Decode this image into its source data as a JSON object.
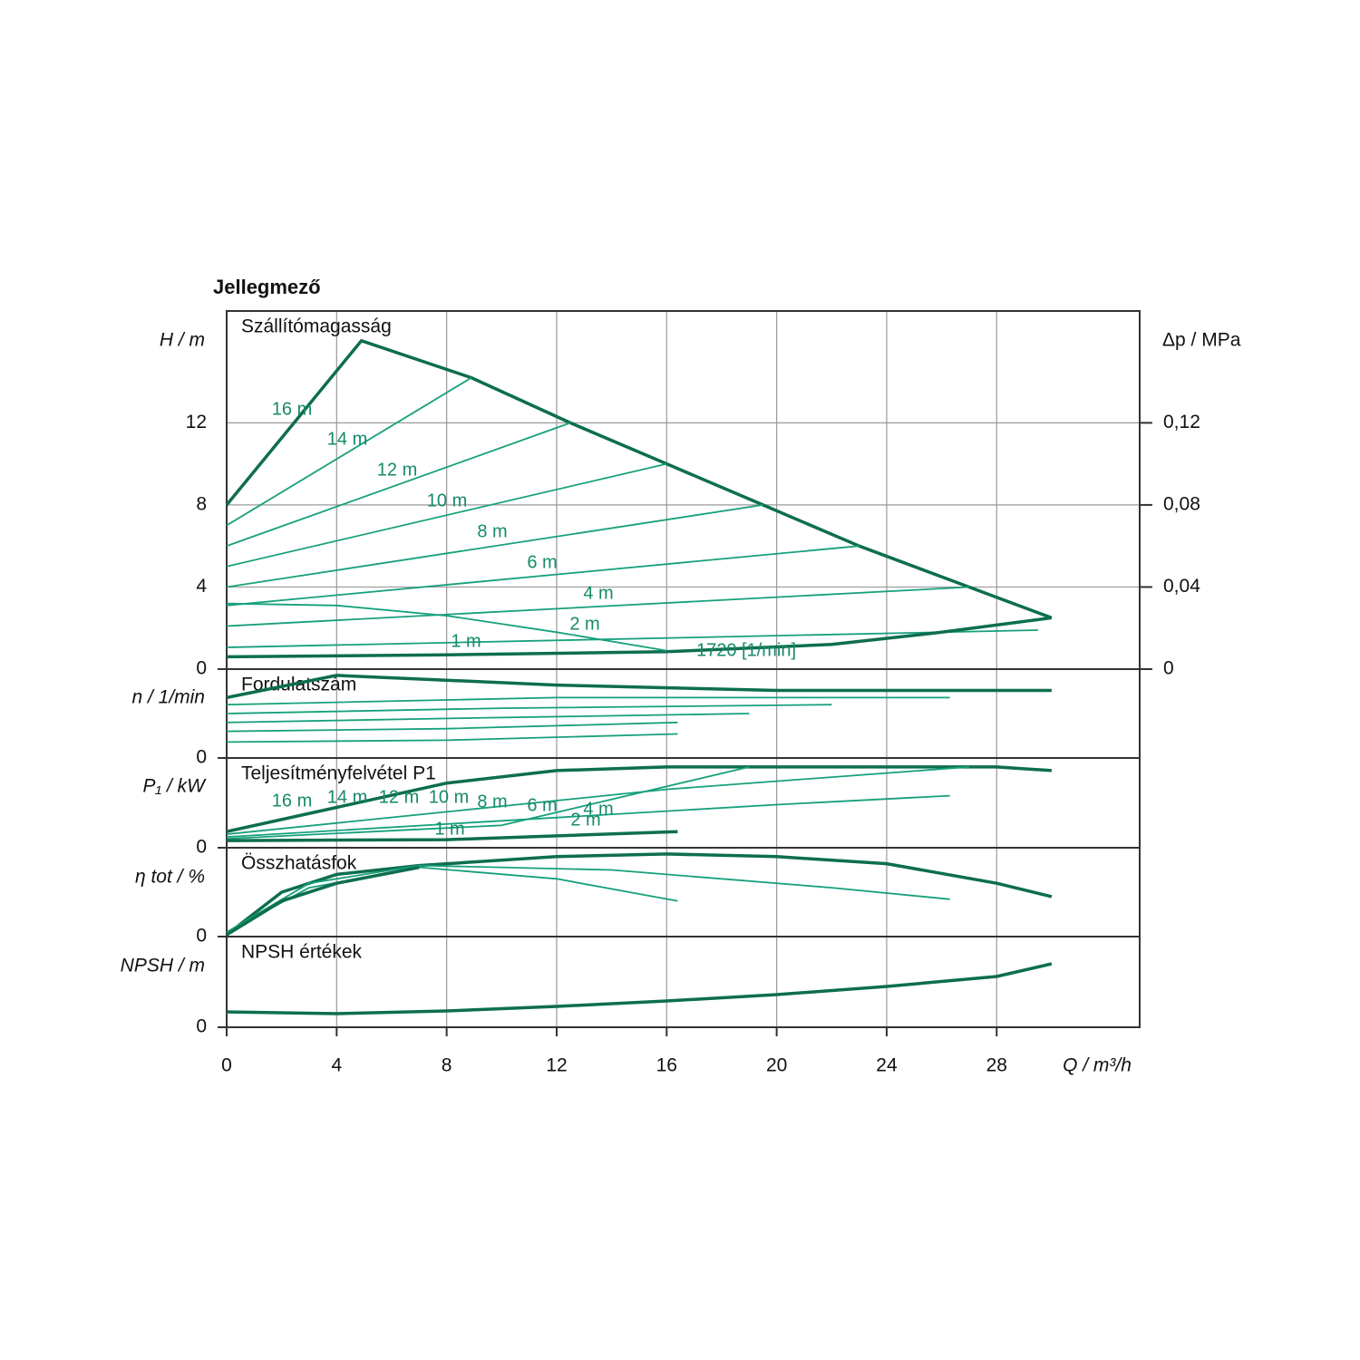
{
  "chart_data": [
    {
      "type": "line",
      "title": "Jellegmező",
      "subtitle": "Szállítómagasság",
      "y_label": "H / m",
      "y2_label": "Δp / MPa",
      "xlim": [
        0,
        33.2
      ],
      "ylim": [
        0,
        17.45
      ],
      "yticks": [
        0,
        4,
        8,
        12
      ],
      "y2lim": [
        0,
        0.1745
      ],
      "y2ticks": [
        0,
        {
          "value": 0.04,
          "label": "0,04"
        },
        {
          "value": 0.08,
          "label": "0,08"
        },
        {
          "value": 0.12,
          "label": "0,12"
        }
      ],
      "series": [
        {
          "name": "16 m",
          "color": "#0d6e4e",
          "linewidth": 3.5,
          "x": [
            0,
            4.9,
            8.9,
            12.5,
            16,
            19.5,
            23,
            27,
            30
          ],
          "values": [
            8,
            16,
            14.2,
            12,
            10,
            8,
            6,
            4,
            2.5
          ]
        },
        {
          "name": "14 m",
          "color": "#17a07c",
          "linewidth": 1.8,
          "x": [
            0,
            8.9
          ],
          "values": [
            7,
            14.2
          ]
        },
        {
          "name": "12 m",
          "color": "#17a07c",
          "linewidth": 1.8,
          "x": [
            0,
            12.5
          ],
          "values": [
            6,
            12
          ]
        },
        {
          "name": "10 m",
          "color": "#17a07c",
          "linewidth": 1.8,
          "x": [
            0,
            16
          ],
          "values": [
            5,
            10
          ]
        },
        {
          "name": "8 m",
          "color": "#17a07c",
          "linewidth": 1.8,
          "x": [
            0,
            19.5
          ],
          "values": [
            4,
            8
          ]
        },
        {
          "name": "6 m",
          "color": "#17a07c",
          "linewidth": 1.8,
          "x": [
            0,
            23
          ],
          "values": [
            3.1,
            6
          ]
        },
        {
          "name": "4 m",
          "color": "#17a07c",
          "linewidth": 1.8,
          "x": [
            0,
            27
          ],
          "values": [
            2.1,
            4
          ]
        },
        {
          "name": "2 m",
          "color": "#17a07c",
          "linewidth": 1.8,
          "x": [
            0,
            29.5
          ],
          "values": [
            1.06,
            1.9
          ]
        },
        {
          "name": "1 m",
          "color": "#0d6e4e",
          "linewidth": 3.5,
          "x": [
            0,
            8,
            16,
            22,
            26,
            30
          ],
          "values": [
            0.6,
            0.7,
            0.85,
            1.2,
            1.8,
            2.5
          ]
        },
        {
          "name": "1720 [1/min]",
          "color": "#17a07c",
          "linewidth": 1.8,
          "x": [
            0,
            4,
            8,
            12,
            16
          ],
          "values": [
            3.2,
            3.1,
            2.6,
            1.8,
            0.9
          ]
        }
      ]
    },
    {
      "type": "line",
      "subtitle": "Fordulatszám",
      "y_label": "n / 1/min",
      "xlim": [
        0,
        33.2
      ],
      "ylim": [
        0,
        1
      ],
      "yticks": [
        0
      ],
      "series": [
        {
          "color": "#0d6e4e",
          "linewidth": 3.5,
          "x": [
            0,
            4,
            12,
            20,
            30
          ],
          "values": [
            0.68,
            0.93,
            0.82,
            0.76,
            0.76
          ]
        },
        {
          "color": "#17a07c",
          "linewidth": 1.8,
          "x": [
            0,
            12,
            26.3
          ],
          "values": [
            0.6,
            0.68,
            0.68
          ]
        },
        {
          "color": "#17a07c",
          "linewidth": 1.8,
          "x": [
            0,
            10,
            22
          ],
          "values": [
            0.5,
            0.56,
            0.6
          ]
        },
        {
          "color": "#17a07c",
          "linewidth": 1.8,
          "x": [
            0,
            9,
            19
          ],
          "values": [
            0.4,
            0.45,
            0.5
          ]
        },
        {
          "color": "#17a07c",
          "linewidth": 1.8,
          "x": [
            0,
            8,
            16.4
          ],
          "values": [
            0.3,
            0.33,
            0.4
          ]
        },
        {
          "color": "#17a07c",
          "linewidth": 1.8,
          "x": [
            0,
            8,
            16.4
          ],
          "values": [
            0.18,
            0.2,
            0.27
          ]
        }
      ]
    },
    {
      "type": "line",
      "subtitle": "Teljesítményfelvétel P1",
      "y_label": "P₁ / kW",
      "xlim": [
        0,
        33.2
      ],
      "ylim": [
        0,
        1
      ],
      "yticks": [
        0
      ],
      "annotations": [
        "16 m",
        "14 m",
        "12 m",
        "10 m",
        "8 m",
        "6 m",
        "4 m",
        "2 m",
        "1 m"
      ],
      "series": [
        {
          "color": "#0d6e4e",
          "linewidth": 3.5,
          "x": [
            0,
            4,
            8,
            12,
            16,
            24,
            28,
            30
          ],
          "values": [
            0.18,
            0.45,
            0.72,
            0.86,
            0.9,
            0.9,
            0.9,
            0.86
          ]
        },
        {
          "color": "#17a07c",
          "linewidth": 1.8,
          "x": [
            0,
            8,
            16,
            27
          ],
          "values": [
            0.15,
            0.4,
            0.65,
            0.9
          ]
        },
        {
          "color": "#17a07c",
          "linewidth": 1.8,
          "x": [
            0,
            10,
            20,
            26.3
          ],
          "values": [
            0.12,
            0.3,
            0.48,
            0.58
          ]
        },
        {
          "color": "#17a07c",
          "linewidth": 1.8,
          "x": [
            0,
            10,
            19
          ],
          "values": [
            0.1,
            0.25,
            0.9
          ]
        },
        {
          "color": "#0d6e4e",
          "linewidth": 3.5,
          "x": [
            0,
            8,
            16.4
          ],
          "values": [
            0.08,
            0.09,
            0.18
          ]
        }
      ]
    },
    {
      "type": "line",
      "subtitle": "Összhatásfok",
      "y_label": "η tot / %",
      "xlim": [
        0,
        33.2
      ],
      "ylim": [
        0,
        1
      ],
      "yticks": [
        0
      ],
      "series": [
        {
          "color": "#0d6e4e",
          "linewidth": 3.5,
          "x": [
            0,
            2,
            4,
            7,
            12,
            16,
            20,
            24,
            28,
            30
          ],
          "values": [
            0.02,
            0.5,
            0.7,
            0.8,
            0.9,
            0.93,
            0.9,
            0.82,
            0.6,
            0.45
          ]
        },
        {
          "color": "#17a07c",
          "linewidth": 1.8,
          "x": [
            0,
            3,
            7,
            14,
            22,
            26.3
          ],
          "values": [
            0.05,
            0.6,
            0.8,
            0.75,
            0.55,
            0.42
          ]
        },
        {
          "color": "#17a07c",
          "linewidth": 1.8,
          "x": [
            0,
            3,
            7,
            12,
            16.4
          ],
          "values": [
            0.05,
            0.55,
            0.78,
            0.65,
            0.4
          ]
        },
        {
          "color": "#0d6e4e",
          "linewidth": 3.5,
          "x": [
            0,
            2,
            4,
            7
          ],
          "values": [
            0.02,
            0.4,
            0.6,
            0.78
          ]
        }
      ]
    },
    {
      "type": "line",
      "subtitle": "NPSH értékek",
      "y_label": "NPSH / m",
      "x_label": "Q / m³/h",
      "xlim": [
        0,
        33.2
      ],
      "ylim": [
        0,
        1
      ],
      "yticks": [
        0
      ],
      "xticks": [
        0,
        4,
        8,
        12,
        16,
        20,
        24,
        28
      ],
      "series": [
        {
          "color": "#0d6e4e",
          "linewidth": 3.5,
          "x": [
            0,
            4,
            8,
            12,
            16,
            20,
            24,
            28,
            30
          ],
          "values": [
            0.17,
            0.15,
            0.18,
            0.23,
            0.29,
            0.36,
            0.45,
            0.56,
            0.7
          ]
        }
      ]
    }
  ]
}
